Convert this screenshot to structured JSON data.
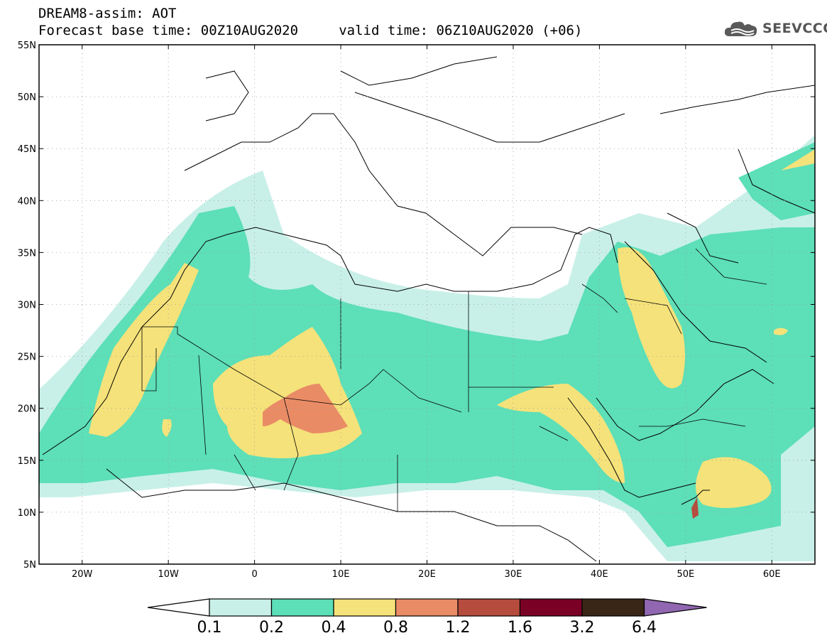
{
  "title": {
    "line1": "DREAM8-assim: AOT",
    "line2": "Forecast base time: 00Z10AUG2020     valid time: 06Z10AUG2020 (+06)"
  },
  "logo": {
    "text": "SEEVCCC",
    "icon": "cloud-icon",
    "color": "#555555"
  },
  "map": {
    "lon_range": [
      -25,
      65
    ],
    "lat_range": [
      5,
      55
    ],
    "lat_ticks": [
      {
        "value": 55,
        "label": "55N"
      },
      {
        "value": 50,
        "label": "50N"
      },
      {
        "value": 45,
        "label": "45N"
      },
      {
        "value": 40,
        "label": "40N"
      },
      {
        "value": 35,
        "label": "35N"
      },
      {
        "value": 30,
        "label": "30N"
      },
      {
        "value": 25,
        "label": "25N"
      },
      {
        "value": 20,
        "label": "20N"
      },
      {
        "value": 15,
        "label": "15N"
      },
      {
        "value": 10,
        "label": "10N"
      },
      {
        "value": 5,
        "label": "5N"
      }
    ],
    "lon_ticks": [
      {
        "value": -20,
        "label": "20W"
      },
      {
        "value": -10,
        "label": "10W"
      },
      {
        "value": 0,
        "label": "0"
      },
      {
        "value": 10,
        "label": "10E"
      },
      {
        "value": 20,
        "label": "20E"
      },
      {
        "value": 30,
        "label": "30E"
      },
      {
        "value": 40,
        "label": "40E"
      },
      {
        "value": 50,
        "label": "50E"
      },
      {
        "value": 60,
        "label": "60E"
      }
    ],
    "grid": true
  },
  "colorbar": {
    "levels": [
      "0.1",
      "0.2",
      "0.4",
      "0.8",
      "1.2",
      "1.6",
      "3.2",
      "6.4"
    ],
    "colors": [
      "#c8f0e8",
      "#5ddfb8",
      "#f5e27a",
      "#e98c66",
      "#b54c3e",
      "#7a0026",
      "#3a2616",
      "#9067b0"
    ],
    "under_color": "#ffffff"
  }
}
